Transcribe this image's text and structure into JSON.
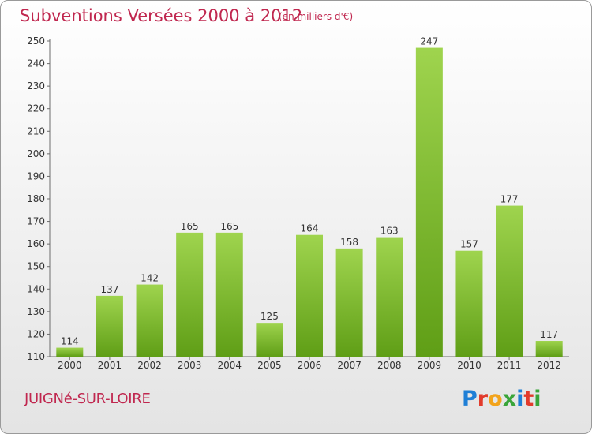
{
  "header": {
    "title": "Subventions Versées 2000 à 2012",
    "subtitle": "(en milliers d'€)"
  },
  "footer": {
    "commune": "JUIGNé-SUR-LOIRE",
    "logo_text": "Proxiti"
  },
  "colors": {
    "title": "#c0274f",
    "bar_light": "#9fd44e",
    "bar_dark": "#5f9e16",
    "logo_letters": [
      "#1f7fd6",
      "#e23b2c",
      "#f2a31b",
      "#3aa53a",
      "#1f7fd6",
      "#e23b2c",
      "#3aa53a"
    ]
  },
  "chart_data": {
    "type": "bar",
    "categories": [
      "2000",
      "2001",
      "2002",
      "2003",
      "2004",
      "2005",
      "2006",
      "2007",
      "2008",
      "2009",
      "2010",
      "2011",
      "2012"
    ],
    "values": [
      114,
      137,
      142,
      165,
      165,
      125,
      164,
      158,
      163,
      247,
      157,
      177,
      117
    ],
    "ylim": [
      110,
      250
    ],
    "yticks": [
      110,
      120,
      130,
      140,
      150,
      160,
      170,
      180,
      190,
      200,
      210,
      220,
      230,
      240,
      250
    ],
    "grid": false,
    "legend": false
  }
}
